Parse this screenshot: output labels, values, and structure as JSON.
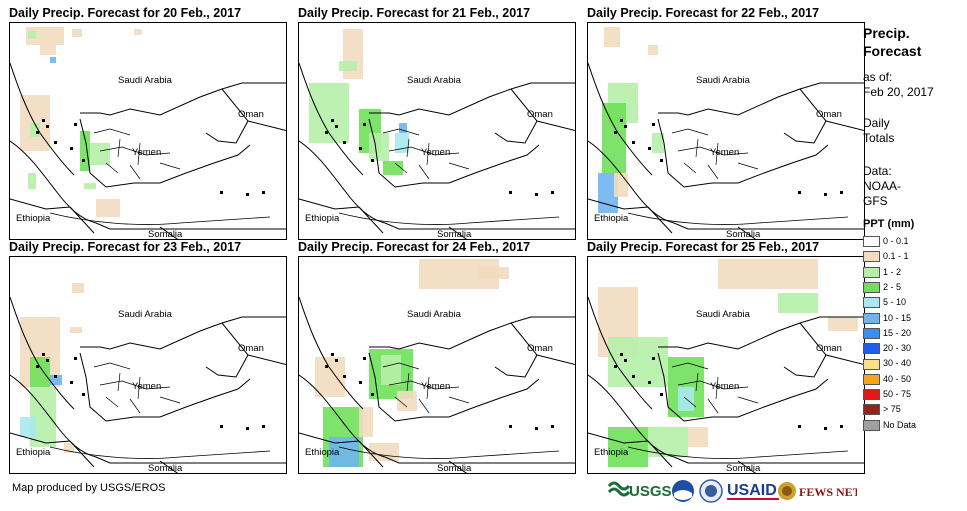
{
  "panels": [
    {
      "title": "Daily Precip. Forecast for 20 Feb., 2017"
    },
    {
      "title": "Daily Precip. Forecast for 21 Feb., 2017"
    },
    {
      "title": "Daily Precip. Forecast for 22 Feb., 2017"
    },
    {
      "title": "Daily Precip. Forecast for 23 Feb., 2017"
    },
    {
      "title": "Daily Precip. Forecast for 24 Feb., 2017"
    },
    {
      "title": "Daily Precip. Forecast for 25 Feb., 2017"
    }
  ],
  "country_labels": {
    "saudi_arabia": "Saudi Arabia",
    "oman": "Oman",
    "yemen": "Yemen",
    "ethiopia": "Ethiopia",
    "somalia": "Somalia"
  },
  "sidebar": {
    "title_line1": "Precip.",
    "title_line2": "Forecast",
    "asof_label": "as of:",
    "asof_date": "Feb 20, 2017",
    "totals_line1": "Daily",
    "totals_line2": "Totals",
    "data_label": "Data:",
    "data_line1": "NOAA-",
    "data_line2": "GFS",
    "legend_title": "PPT (mm)"
  },
  "legend": [
    {
      "label": "0 - 0.1",
      "color": "#ffffff"
    },
    {
      "label": "0.1 - 1",
      "color": "#f2dcbf"
    },
    {
      "label": "1 - 2",
      "color": "#b6f0a8"
    },
    {
      "label": "2 - 5",
      "color": "#6fe05a"
    },
    {
      "label": "5 - 10",
      "color": "#a8e8f0"
    },
    {
      "label": "10 - 15",
      "color": "#6fb4ef"
    },
    {
      "label": "15 - 20",
      "color": "#3a8ef0"
    },
    {
      "label": "20 - 30",
      "color": "#1c5ef0"
    },
    {
      "label": "30 - 40",
      "color": "#f8e08a"
    },
    {
      "label": "40 - 50",
      "color": "#f5a516"
    },
    {
      "label": "50 - 75",
      "color": "#e01818"
    },
    {
      "label": "> 75",
      "color": "#9a2020"
    },
    {
      "label": "No Data",
      "color": "#a0a0a0"
    }
  ],
  "credit": "Map produced by USGS/EROS",
  "logos": {
    "usgs": "USGS",
    "usaid": "USAID",
    "fewsnet": "FEWS NET"
  }
}
